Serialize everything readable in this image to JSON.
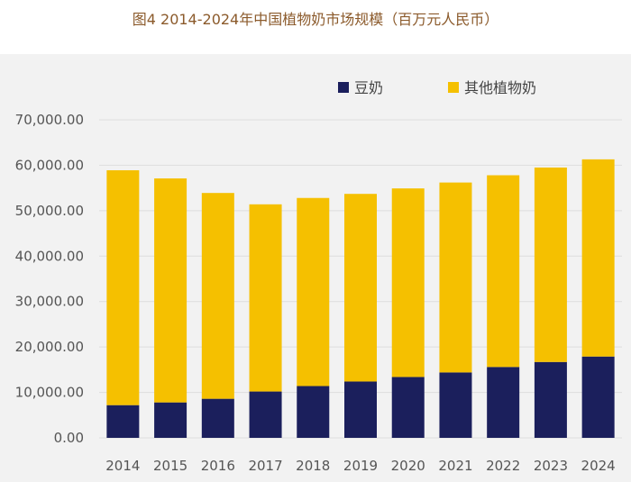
{
  "chart_data": {
    "type": "bar",
    "stacked": true,
    "title": "图4 2014-2024年中国植物奶市场规模（百万元人民币）",
    "categories": [
      "2014",
      "2015",
      "2016",
      "2017",
      "2018",
      "2019",
      "2020",
      "2021",
      "2022",
      "2023",
      "2024"
    ],
    "series": [
      {
        "name": "豆奶",
        "color": "#1b1f5c",
        "values": [
          7200,
          7800,
          8600,
          10200,
          11400,
          12400,
          13400,
          14400,
          15600,
          16700,
          17900
        ]
      },
      {
        "name": "其他植物奶",
        "color": "#f5c000",
        "values": [
          51700,
          49300,
          45300,
          41200,
          41400,
          41300,
          41500,
          41800,
          42200,
          42800,
          43400
        ]
      }
    ],
    "yticks": [
      "0.00",
      "10,000.00",
      "20,000.00",
      "30,000.00",
      "40,000.00",
      "50,000.00",
      "60,000.00",
      "70,000.00"
    ],
    "ylim": [
      0,
      70000
    ],
    "grid": true,
    "legend": "top-right"
  }
}
